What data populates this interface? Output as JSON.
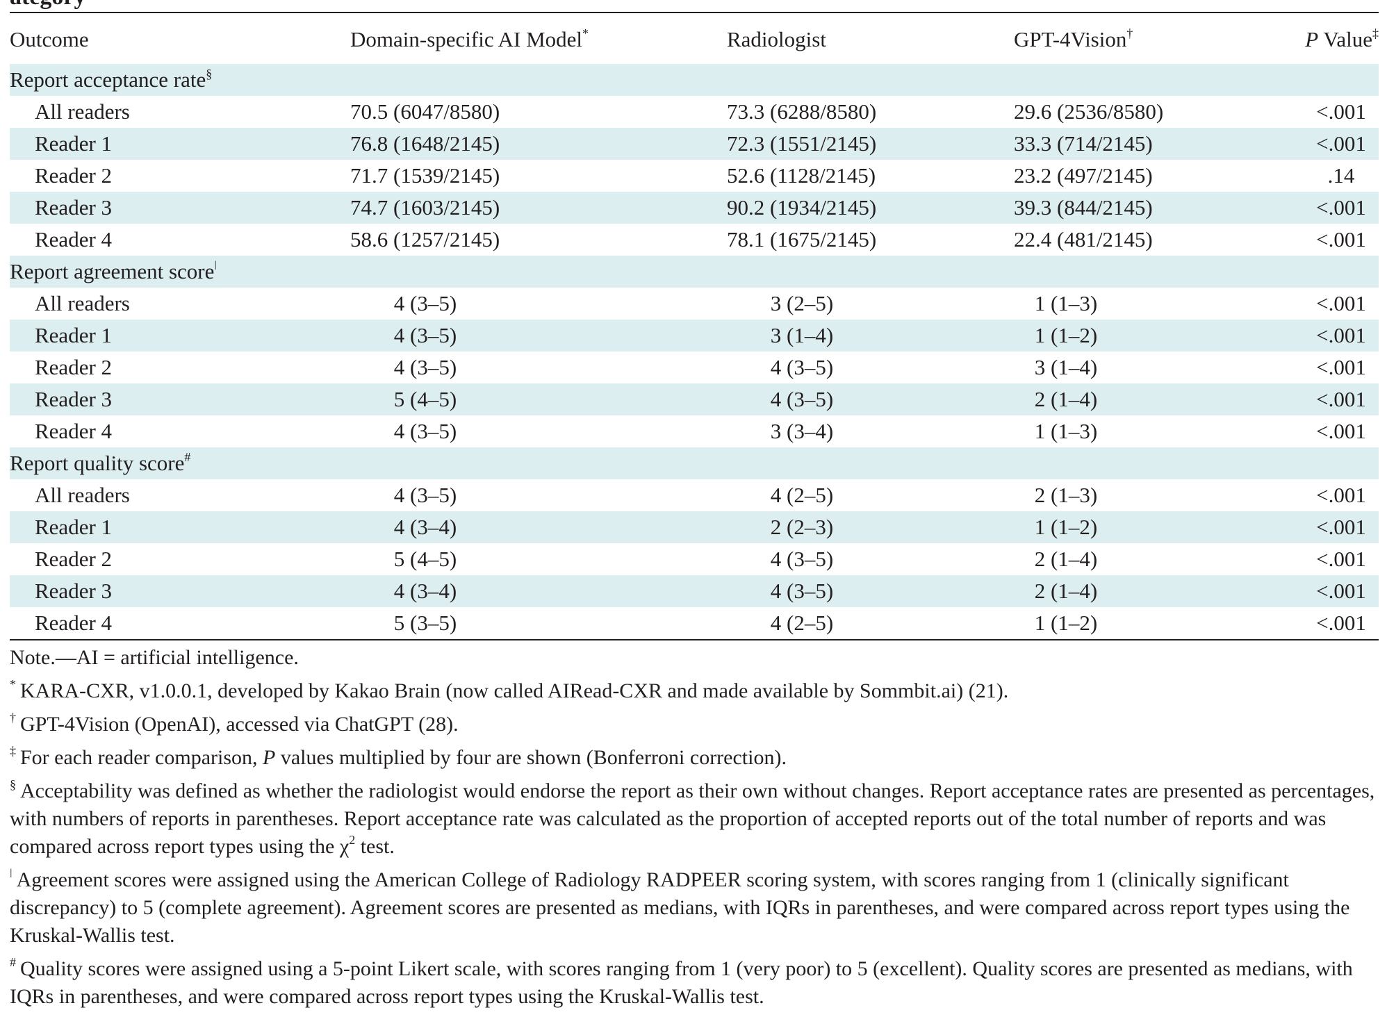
{
  "cutoff_text": "ategory",
  "header": {
    "outcome": "Outcome",
    "ai": "Domain-specific AI Model",
    "ai_mark": "*",
    "radiologist": "Radiologist",
    "gpt": "GPT-4Vision",
    "gpt_mark": "†",
    "p_italic": "P",
    "p_rest": " Value",
    "p_mark": "‡"
  },
  "sections": [
    {
      "title": "Report acceptance rate",
      "mark": "§",
      "rows": [
        {
          "label": "All readers",
          "ai": "70.5 (6047/8580)",
          "rad": "73.3 (6288/8580)",
          "gpt": "29.6 (2536/8580)",
          "p": "<.001"
        },
        {
          "label": "Reader 1",
          "ai": "76.8 (1648/2145)",
          "rad": "72.3 (1551/2145)",
          "gpt": "33.3 (714/2145)",
          "p": "<.001"
        },
        {
          "label": "Reader 2",
          "ai": "71.7 (1539/2145)",
          "rad": "52.6 (1128/2145)",
          "gpt": "23.2 (497/2145)",
          "p": ".14"
        },
        {
          "label": "Reader 3",
          "ai": "74.7 (1603/2145)",
          "rad": "90.2 (1934/2145)",
          "gpt": "39.3 (844/2145)",
          "p": "<.001"
        },
        {
          "label": "Reader 4",
          "ai": "58.6 (1257/2145)",
          "rad": "78.1 (1675/2145)",
          "gpt": "22.4 (481/2145)",
          "p": "<.001"
        }
      ]
    },
    {
      "title": "Report agreement score",
      "mark": "ǀ",
      "rows": [
        {
          "label": "All readers",
          "ai": "4 (3–5)",
          "rad": "3 (2–5)",
          "gpt": "1 (1–3)",
          "p": "<.001"
        },
        {
          "label": "Reader 1",
          "ai": "4 (3–5)",
          "rad": "3 (1–4)",
          "gpt": "1 (1–2)",
          "p": "<.001"
        },
        {
          "label": "Reader 2",
          "ai": "4 (3–5)",
          "rad": "4 (3–5)",
          "gpt": "3 (1–4)",
          "p": "<.001"
        },
        {
          "label": "Reader 3",
          "ai": "5 (4–5)",
          "rad": "4 (3–5)",
          "gpt": "2 (1–4)",
          "p": "<.001"
        },
        {
          "label": "Reader 4",
          "ai": "4 (3–5)",
          "rad": "3 (3–4)",
          "gpt": "1 (1–3)",
          "p": "<.001"
        }
      ]
    },
    {
      "title": "Report quality score",
      "mark": "#",
      "rows": [
        {
          "label": "All readers",
          "ai": "4 (3–5)",
          "rad": "4 (2–5)",
          "gpt": "2 (1–3)",
          "p": "<.001"
        },
        {
          "label": "Reader 1",
          "ai": "4 (3–4)",
          "rad": "2 (2–3)",
          "gpt": "1 (1–2)",
          "p": "<.001"
        },
        {
          "label": "Reader 2",
          "ai": "5 (4–5)",
          "rad": "4 (3–5)",
          "gpt": "2 (1–4)",
          "p": "<.001"
        },
        {
          "label": "Reader 3",
          "ai": "4 (3–4)",
          "rad": "4 (3–5)",
          "gpt": "2 (1–4)",
          "p": "<.001"
        },
        {
          "label": "Reader 4",
          "ai": "5 (3–5)",
          "rad": "4 (2–5)",
          "gpt": "1 (1–2)",
          "p": "<.001"
        }
      ]
    }
  ],
  "notes": [
    {
      "mark": "",
      "text": "Note.—AI = artificial intelligence."
    },
    {
      "mark": "*",
      "text": "KARA-CXR, v1.0.0.1, developed by Kakao Brain (now called AIRead-CXR and made available by Sommbit.ai) (21)."
    },
    {
      "mark": "†",
      "text": "GPT-4Vision (OpenAI), accessed via ChatGPT (28)."
    },
    {
      "mark": "‡",
      "text_before": "For each reader comparison, ",
      "italic": "P",
      "text_after": " values multiplied by four are shown (Bonferroni correction)."
    },
    {
      "mark": "§",
      "text_before": "Acceptability was defined as whether the radiologist would endorse the report as their own without changes. Report acceptance rates are presented as percentages, with numbers of reports in parentheses. Report acceptance rate was calculated as the proportion of accepted reports out of the total number of reports and was compared across report types using the χ",
      "sup": "2",
      "text_after": " test."
    },
    {
      "mark": "ǀ",
      "text": "Agreement scores were assigned using the American College of Radiology RADPEER scoring system, with scores ranging from 1 (clinically significant discrepancy) to 5 (complete agreement). Agreement scores are presented as medians, with IQRs in parentheses, and were compared across report types using the Kruskal-Wallis test."
    },
    {
      "mark": "#",
      "text": "Quality scores were assigned using a 5-point Likert scale, with scores ranging from 1 (very poor) to 5 (excellent). Quality scores are presented as medians, with IQRs in parentheses, and were compared across report types using the Kruskal-Wallis test."
    }
  ]
}
